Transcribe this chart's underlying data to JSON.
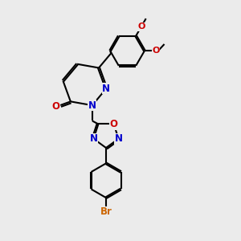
{
  "bg_color": "#ebebeb",
  "bond_color": "#000000",
  "n_color": "#0000cc",
  "o_color": "#cc0000",
  "br_color": "#cc6600",
  "line_width": 1.5,
  "dbo": 0.06,
  "figsize": [
    3.0,
    3.0
  ],
  "dpi": 100,
  "xlim": [
    0,
    10
  ],
  "ylim": [
    0,
    10
  ]
}
